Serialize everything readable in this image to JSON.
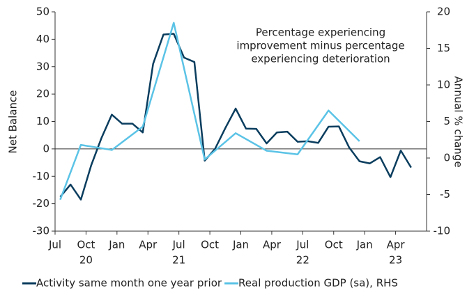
{
  "chart_data": {
    "type": "line",
    "annotation": [
      "Percentage experiencing",
      "improvement minus percentage",
      "experiencing deterioration"
    ],
    "ylabel": "Net Balance",
    "y2label": "Annual % change",
    "xlim": [
      0,
      36
    ],
    "xticks": [
      {
        "value": 0,
        "label": "Jul"
      },
      {
        "value": 3,
        "label": "Oct"
      },
      {
        "value": 6,
        "label": "Jan"
      },
      {
        "value": 9,
        "label": "Apr"
      },
      {
        "value": 12,
        "label": "Jul"
      },
      {
        "value": 15,
        "label": "Oct"
      },
      {
        "value": 18,
        "label": "Jan"
      },
      {
        "value": 21,
        "label": "Apr"
      },
      {
        "value": 24,
        "label": "Jul"
      },
      {
        "value": 27,
        "label": "Oct"
      },
      {
        "value": 30,
        "label": "Jan"
      },
      {
        "value": 33,
        "label": "Apr"
      }
    ],
    "year_labels": [
      {
        "value": 3,
        "label": "20"
      },
      {
        "value": 12,
        "label": "21"
      },
      {
        "value": 24,
        "label": "22"
      },
      {
        "value": 33,
        "label": "23"
      }
    ],
    "ylim": [
      -30,
      50
    ],
    "yticks": [
      -30,
      -20,
      -10,
      0,
      10,
      20,
      30,
      40,
      50
    ],
    "y2lim": [
      -10,
      20
    ],
    "y2ticks": [
      -10,
      -5,
      0,
      5,
      10,
      15,
      20
    ],
    "zero_line": 0,
    "series": [
      {
        "name": "Activity same month one year prior",
        "color": "#0a3d5e",
        "x": [
          0.5,
          1.5,
          2.5,
          3.5,
          4.5,
          5.5,
          6.5,
          7.5,
          8.5,
          9.5,
          10.5,
          11.5,
          12.5,
          13.5,
          14.5,
          15.5,
          16.5,
          17.5,
          18.5,
          19.5,
          20.5,
          21.5,
          22.5,
          23.5,
          24.5,
          25.5,
          26.5,
          27.5,
          28.5,
          29.5,
          30.5,
          31.5,
          32.5,
          33.5,
          34.5
        ],
        "values": [
          -17.5,
          -13,
          -18.5,
          -6,
          4,
          12.5,
          9.2,
          9.2,
          6,
          31,
          41.7,
          42,
          33.3,
          31.7,
          -4.3,
          0,
          7.6,
          14.7,
          7.4,
          7.3,
          2,
          6,
          6.3,
          2.6,
          2.8,
          2.2,
          8.1,
          8.2,
          0.5,
          -4.5,
          -5.3,
          -3,
          -10.3,
          -0.6,
          -6.8
        ]
      },
      {
        "name": "Real production GDP (sa), RHS",
        "color": "#5bc3e6",
        "axis": "y2",
        "x": [
          0.5,
          2.5,
          5.5,
          8.5,
          11.5,
          14.5,
          17.5,
          20.5,
          23.5,
          26.5,
          29.5
        ],
        "values": [
          -5.7,
          1.8,
          1.1,
          4.3,
          18.5,
          -0.2,
          3.4,
          1.0,
          0.5,
          6.5,
          2.3
        ]
      }
    ]
  }
}
